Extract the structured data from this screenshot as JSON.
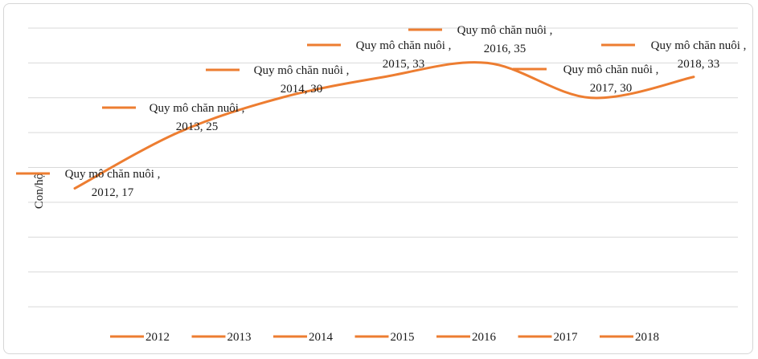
{
  "chart_data": {
    "type": "line",
    "ylabel": "Con/hộ",
    "xlabel": "",
    "title": "",
    "x": [
      "2012",
      "2013",
      "2014",
      "2015",
      "2016",
      "2017",
      "2018"
    ],
    "series": [
      {
        "values": [
          17,
          25,
          30,
          33,
          35,
          30,
          33
        ],
        "color": "#ED7D31"
      }
    ],
    "data_labels": [
      {
        "series_text": "Quy mô chăn nuôi ,",
        "value_text": "2012, 17"
      },
      {
        "series_text": "Quy mô chăn nuôi ,",
        "value_text": "2013, 25"
      },
      {
        "series_text": "Quy mô chăn nuôi ,",
        "value_text": "2014, 30"
      },
      {
        "series_text": "Quy mô chăn nuôi ,",
        "value_text": "2015, 33"
      },
      {
        "series_text": "Quy mô chăn nuôi ,",
        "value_text": "2016, 35"
      },
      {
        "series_text": "Quy mô chăn nuôi ,",
        "value_text": "2017, 30"
      },
      {
        "series_text": "Quy mô chăn nuôi ,",
        "value_text": "2018, 33"
      }
    ],
    "legend": [
      "2012",
      "2013",
      "2014",
      "2015",
      "2016",
      "2017",
      "2018"
    ],
    "legend_position": "bottom",
    "grid": true,
    "ylim": [
      0,
      40
    ]
  }
}
